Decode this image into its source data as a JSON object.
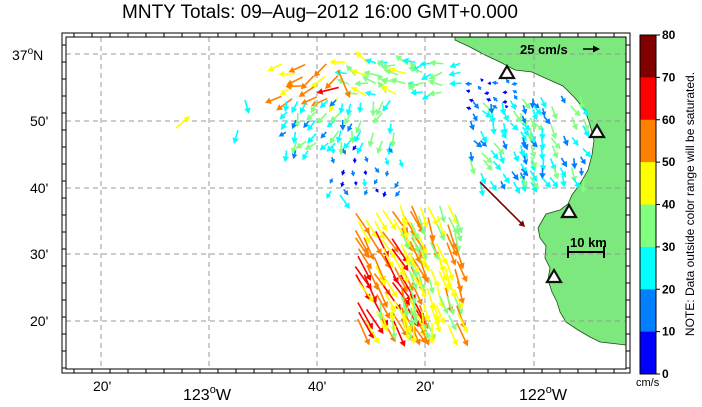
{
  "title": "MNTY Totals: 09–Aug–2012 16:00 GMT+0.000",
  "axes": {
    "y_ticks": [
      {
        "label": "37",
        "suffix": "N"
      },
      {
        "label": "50'"
      },
      {
        "label": "40'"
      },
      {
        "label": "30'"
      },
      {
        "label": "20'"
      }
    ],
    "x_ticks": [
      {
        "label": "20'"
      },
      {
        "label": "123",
        "suffix": "W"
      },
      {
        "label": "40'"
      },
      {
        "label": "20'"
      },
      {
        "label": "122",
        "suffix": "W"
      }
    ]
  },
  "reference_arrow_label": "25 cm/s",
  "scale_bar_label": "10 km",
  "colorbar": {
    "ticks": [
      "80",
      "70",
      "60",
      "50",
      "40",
      "30",
      "20",
      "10",
      "0"
    ],
    "colors": [
      "#800000",
      "#ff0000",
      "#ff8000",
      "#ffff00",
      "#80ff80",
      "#00ffff",
      "#0080ff",
      "#0000ff"
    ],
    "unit": "cm/s",
    "note": "NOTE: Data outside color range will be saturated."
  },
  "colors": {
    "land": "#7de87d",
    "grid": "#999999",
    "vector_high": "#8b0000",
    "station": "#111111"
  }
}
